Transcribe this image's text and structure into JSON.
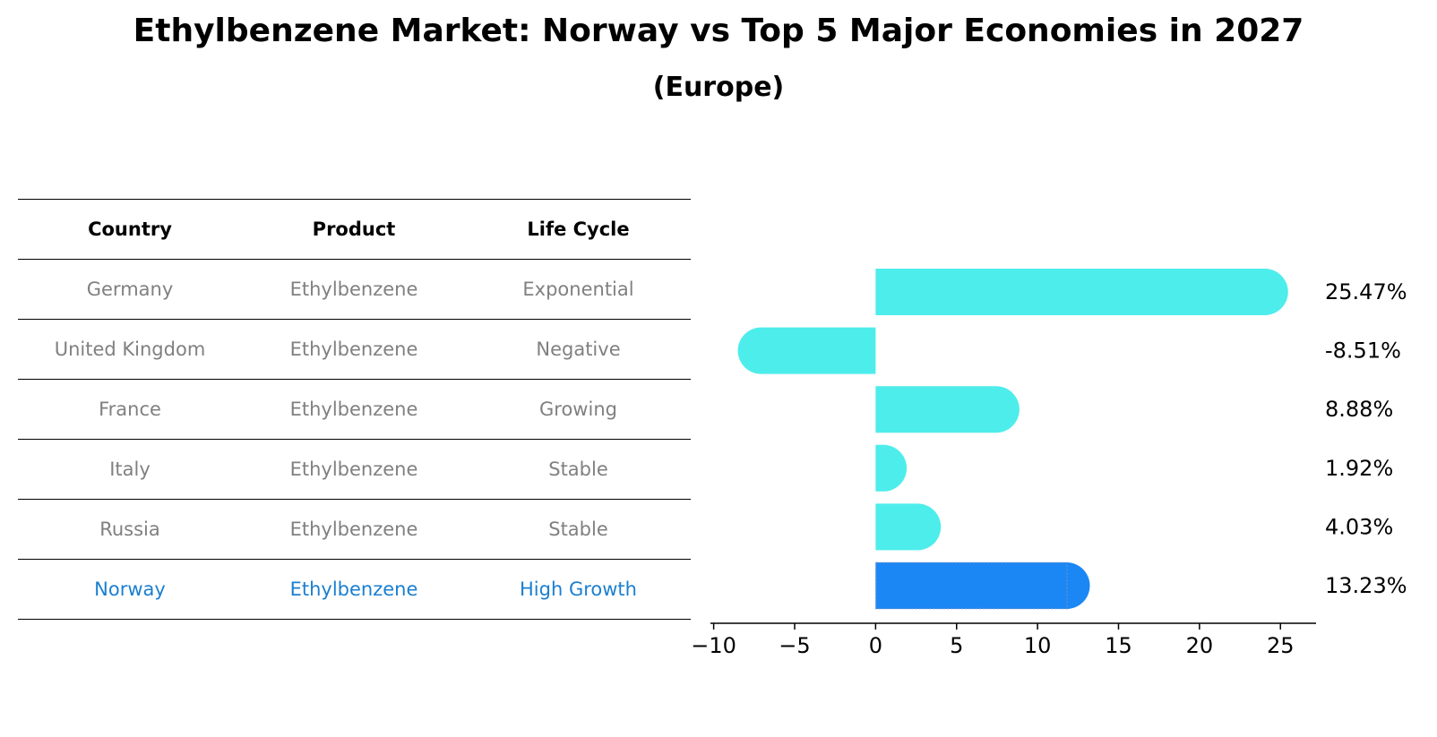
{
  "title": "Ethylbenzene Market: Norway vs Top 5 Major Economies in 2027",
  "subtitle": "(Europe)",
  "table": {
    "headers": [
      "Country",
      "Product",
      "Life Cycle"
    ],
    "rows": [
      {
        "country": "Germany",
        "product": "Ethylbenzene",
        "life_cycle": "Exponential"
      },
      {
        "country": "United Kingdom",
        "product": "Ethylbenzene",
        "life_cycle": "Negative"
      },
      {
        "country": "France",
        "product": "Ethylbenzene",
        "life_cycle": "Growing"
      },
      {
        "country": "Italy",
        "product": "Ethylbenzene",
        "life_cycle": "Stable"
      },
      {
        "country": "Russia",
        "product": "Ethylbenzene",
        "life_cycle": "Stable"
      },
      {
        "country": "Norway",
        "product": "Ethylbenzene",
        "life_cycle": "High Growth"
      }
    ]
  },
  "chart_data": {
    "type": "bar",
    "orientation": "horizontal",
    "categories": [
      "Germany",
      "United Kingdom",
      "France",
      "Italy",
      "Russia",
      "Norway"
    ],
    "values": [
      25.47,
      -8.51,
      8.88,
      1.92,
      4.03,
      13.23
    ],
    "value_labels": [
      "25.47%",
      "-8.51%",
      "8.88%",
      "1.92%",
      "4.03%",
      "13.23%"
    ],
    "highlight": "Norway",
    "xlim": [
      -10.2,
      27.2
    ],
    "xticks": [
      -10,
      -5,
      0,
      5,
      10,
      15,
      20,
      25
    ],
    "xtick_labels": [
      "−10",
      "−5",
      "0",
      "5",
      "10",
      "15",
      "20",
      "25"
    ],
    "colors": {
      "default": "#4DEDEB",
      "highlight": "#1A87F5",
      "highlight_border": "#5A8FD0"
    },
    "title": "Ethylbenzene Market: Norway vs Top 5 Major Economies in 2027",
    "xlabel": "",
    "ylabel": ""
  }
}
